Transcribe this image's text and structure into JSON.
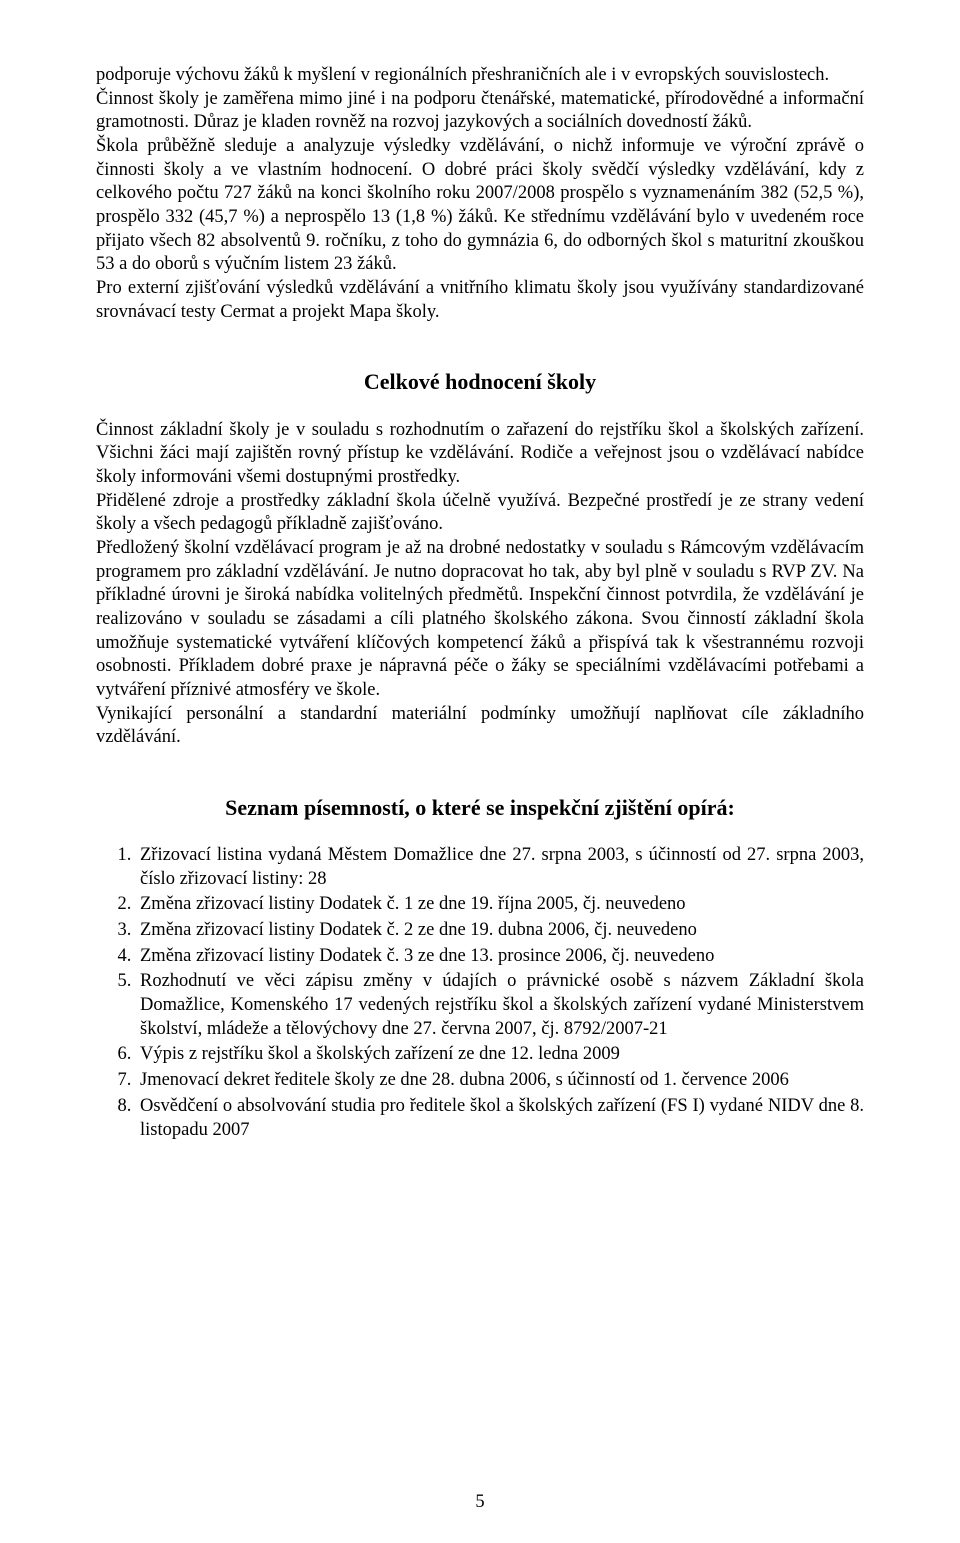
{
  "intro": {
    "p1": "podporuje výchovu žáků k myšlení v regionálních přeshraničních ale i v evropských souvislostech.",
    "p2": "Činnost školy je zaměřena mimo jiné i na podporu čtenářské, matematické, přírodovědné a informační gramotnosti. Důraz je kladen rovněž na rozvoj jazykových a sociálních dovedností žáků.",
    "p3": "Škola průběžně sleduje a analyzuje výsledky vzdělávání, o nichž informuje ve výroční zprávě o činnosti školy a ve vlastním hodnocení. O dobré práci školy svědčí výsledky vzdělávání, kdy z celkového počtu 727 žáků na konci školního roku 2007/2008 prospělo s vyznamenáním 382 (52,5 %), prospělo 332 (45,7 %) a neprospělo 13 (1,8 %) žáků. Ke střednímu vzdělávání bylo v uvedeném roce přijato všech 82 absolventů 9. ročníku, z toho do gymnázia 6, do odborných škol s maturitní zkouškou 53 a do oborů s výučním listem 23 žáků.",
    "p4": "Pro externí zjišťování výsledků vzdělávání a vnitřního klimatu školy jsou využívány standardizované srovnávací testy Cermat a projekt Mapa školy."
  },
  "evaluation": {
    "heading": "Celkové hodnocení školy",
    "p1": "Činnost základní školy je v souladu s rozhodnutím o zařazení do rejstříku škol a školských zařízení. Všichni žáci mají zajištěn rovný přístup ke vzdělávání. Rodiče a veřejnost jsou o vzdělávací nabídce školy informováni všemi dostupnými prostředky.",
    "p2": "Přidělené zdroje a prostředky základní škola účelně využívá. Bezpečné prostředí je ze strany vedení školy a všech pedagogů příkladně zajišťováno.",
    "p3": "Předložený školní vzdělávací program je až na drobné nedostatky v souladu s Rámcovým vzdělávacím programem pro základní vzdělávání. Je nutno dopracovat ho tak, aby byl plně v souladu s RVP ZV. Na příkladné úrovni je široká nabídka volitelných předmětů. Inspekční činnost potvrdila, že vzdělávání je realizováno v souladu se zásadami a cíli platného školského zákona. Svou činností základní škola umožňuje systematické vytváření klíčových kompetencí žáků a přispívá tak k všestrannému rozvoji osobnosti. Příkladem dobré praxe je nápravná péče o žáky se speciálními vzdělávacími potřebami a vytváření příznivé atmosféry ve škole.",
    "p4": "Vynikající personální a standardní materiální podmínky umožňují naplňovat cíle základního vzdělávání."
  },
  "documents": {
    "heading": "Seznam písemností, o které se inspekční zjištění opírá:",
    "items": [
      "Zřizovací listina vydaná Městem Domažlice dne 27. srpna 2003, s účinností od 27. srpna 2003, číslo zřizovací listiny: 28",
      "Změna zřizovací listiny Dodatek č. 1 ze dne 19. října 2005, čj. neuvedeno",
      "Změna zřizovací listiny Dodatek č. 2 ze dne 19. dubna 2006, čj. neuvedeno",
      "Změna zřizovací listiny Dodatek č. 3 ze dne 13. prosince 2006, čj. neuvedeno",
      "Rozhodnutí ve věci zápisu změny v údajích o právnické osobě s názvem Základní škola Domažlice, Komenského 17 vedených rejstříku škol a školských zařízení vydané Ministerstvem školství, mládeže a tělovýchovy dne 27. června 2007, čj. 8792/2007-21",
      "Výpis z rejstříku škol a školských zařízení ze dne 12. ledna 2009",
      "Jmenovací dekret ředitele školy ze dne 28. dubna 2006, s účinností od 1. července 2006",
      "Osvědčení o absolvování studia pro ředitele škol a školských zařízení (FS I) vydané NIDV dne 8. listopadu 2007"
    ]
  },
  "page_number": "5"
}
